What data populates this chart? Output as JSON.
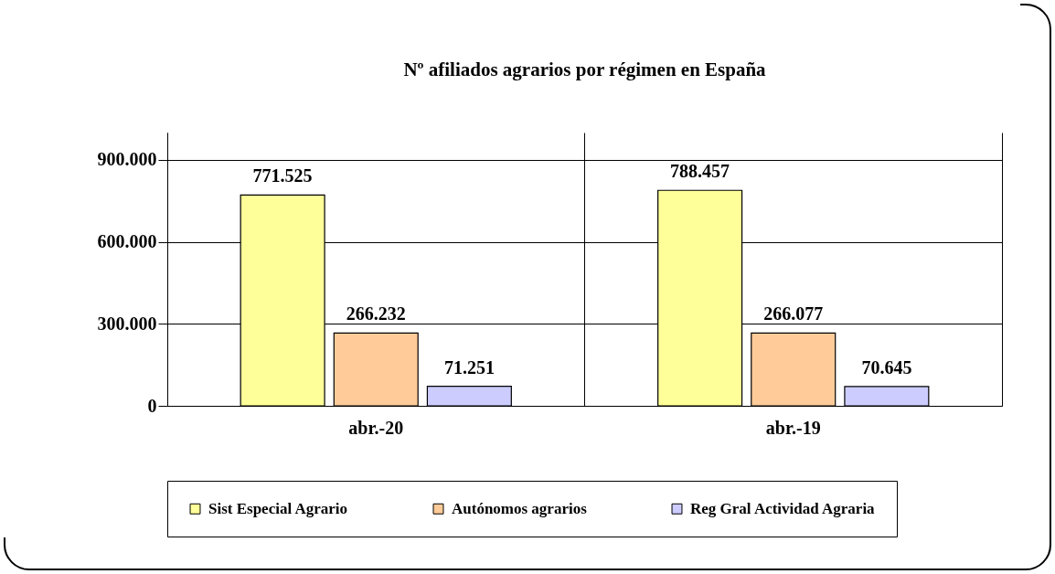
{
  "chart_data": {
    "type": "bar",
    "title": "Nº afiliados  agrarios  por régimen en España",
    "categories": [
      "abr.-20",
      "abr.-19"
    ],
    "series": [
      {
        "name": "Sist Especial Agrario",
        "color": "#ffff99",
        "values": [
          771525,
          788457
        ],
        "value_labels": [
          "771.525",
          "788.457"
        ]
      },
      {
        "name": "Autónomos agrarios",
        "color": "#ffcc99",
        "values": [
          266232,
          266077
        ],
        "value_labels": [
          "266.232",
          "266.077"
        ]
      },
      {
        "name": "Reg Gral Actividad Agraria",
        "color": "#ccccff",
        "values": [
          71251,
          70645
        ],
        "value_labels": [
          "71.251",
          "70.645"
        ]
      }
    ],
    "ylim": [
      0,
      1000000
    ],
    "yticks": [
      {
        "value": 0,
        "label": "0"
      },
      {
        "value": 300000,
        "label": "300.000"
      },
      {
        "value": 600000,
        "label": "600.000"
      },
      {
        "value": 900000,
        "label": "900.000"
      }
    ],
    "grid": true,
    "legend": "bottom"
  }
}
